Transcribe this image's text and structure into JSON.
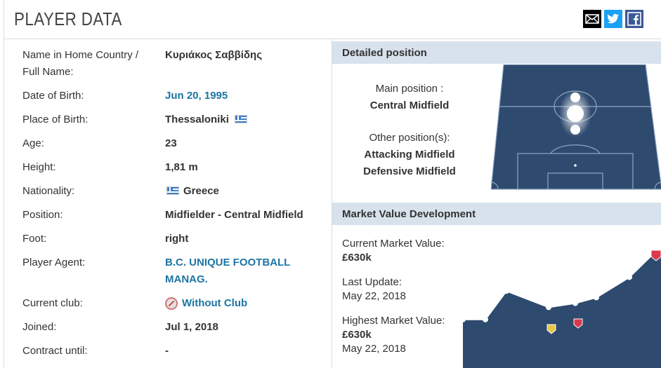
{
  "header": {
    "title": "PLAYER DATA",
    "mail_icon": "mail-icon",
    "twitter_icon": "twitter-icon",
    "facebook_icon": "facebook-icon"
  },
  "player": {
    "name_label": "Name in Home Country / Full Name:",
    "name_value": "Κυριάκος Σαββίδης",
    "dob_label": "Date of Birth:",
    "dob_value": "Jun 20, 1995",
    "pob_label": "Place of Birth:",
    "pob_value": "Thessaloniki",
    "age_label": "Age:",
    "age_value": "23",
    "height_label": "Height:",
    "height_value": "1,81 m",
    "nationality_label": "Nationality:",
    "nationality_value": "Greece",
    "position_label": "Position:",
    "position_value": "Midfielder - Central Midfield",
    "foot_label": "Foot:",
    "foot_value": "right",
    "agent_label": "Player Agent:",
    "agent_value_line1": "B.C. UNIQUE FOOTBALL",
    "agent_value_line2": "MANAG.",
    "club_label": "Current club:",
    "club_value": "Without Club",
    "joined_label": "Joined:",
    "joined_value": "Jul 1, 2018",
    "contract_label": "Contract until:",
    "contract_value": "-"
  },
  "detailed_position": {
    "heading": "Detailed position",
    "main_label": "Main position :",
    "main_value": "Central Midfield",
    "other_label": "Other position(s):",
    "other_values": [
      "Attacking Midfield",
      "Defensive Midfield"
    ]
  },
  "market_value": {
    "heading": "Market Value Development",
    "current_label": "Current Market Value:",
    "current_value": "£630k",
    "update_label": "Last Update:",
    "update_value": "May 22, 2018",
    "highest_label": "Highest Market Value:",
    "highest_value": "£630k",
    "highest_date": "May 22, 2018"
  },
  "chart_data": {
    "type": "area",
    "title": "",
    "xlabel": "",
    "ylabel": "",
    "values": [
      0.2,
      0.2,
      0.55,
      0.35,
      0.4,
      0.47,
      0.72,
      1.0
    ],
    "colors": {
      "area": "#2e4a6f",
      "line": "#ffffff",
      "points": "#ffffff"
    }
  }
}
